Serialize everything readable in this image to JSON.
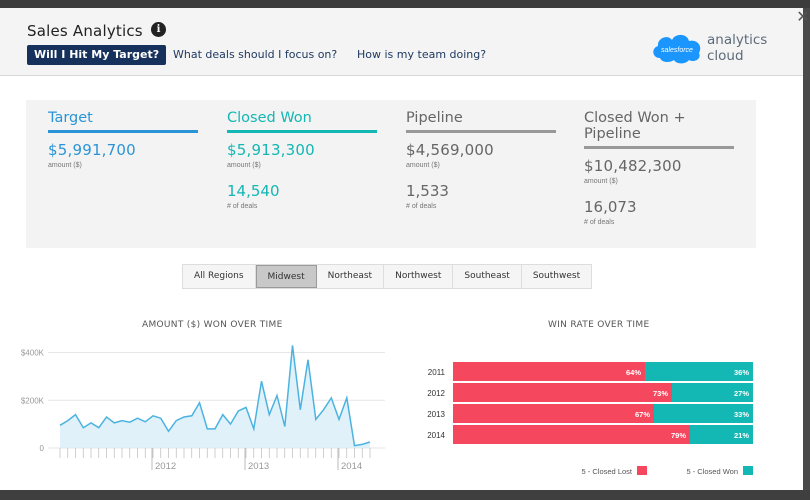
{
  "header": {
    "title": "Sales Analytics",
    "info_icon": "info-icon",
    "tabs": [
      {
        "label": "Will I Hit My Target?",
        "active": true
      },
      {
        "label": "What deals should I focus on?",
        "active": false
      },
      {
        "label": "How is my team doing?",
        "active": false
      }
    ],
    "logo": {
      "cloud_text": "salesforce",
      "product": "analytics cloud"
    },
    "close_icon": "close-icon"
  },
  "kpis": [
    {
      "title": "Target",
      "value": "$5,991,700",
      "unit": "amount ($)",
      "count": "",
      "count_unit": ""
    },
    {
      "title": "Closed Won",
      "value": "$5,913,300",
      "unit": "amount ($)",
      "count": "14,540",
      "count_unit": "# of deals"
    },
    {
      "title": "Pipeline",
      "value": "$4,569,000",
      "unit": "amount ($)",
      "count": "1,533",
      "count_unit": "# of deals"
    },
    {
      "title": "Closed Won + Pipeline",
      "value": "$10,482,300",
      "unit": "amount ($)",
      "count": "16,073",
      "count_unit": "# of deals"
    }
  ],
  "filters": [
    {
      "label": "All Regions",
      "active": false
    },
    {
      "label": "Midwest",
      "active": true
    },
    {
      "label": "Northeast",
      "active": false
    },
    {
      "label": "Northwest",
      "active": false
    },
    {
      "label": "Southeast",
      "active": false
    },
    {
      "label": "Southwest",
      "active": false
    }
  ],
  "colors": {
    "target_blue": "#2a94d6",
    "closed_won_teal": "#13b7b3",
    "lost_red": "#f5475d",
    "nav_active": "#16325c"
  },
  "chart_data": [
    {
      "type": "area",
      "title": "AMOUNT ($) WON OVER TIME",
      "ytick_labels": [
        "$400K",
        "$200K",
        "0"
      ],
      "ytick_values": [
        400000,
        200000,
        0
      ],
      "ylim": [
        0,
        440000
      ],
      "xtick_labels": [
        "2012",
        "2013",
        "2014"
      ],
      "grid": true,
      "series": [
        {
          "values": [
            95000,
            115000,
            140000,
            85000,
            105000,
            85000,
            130000,
            105000,
            115000,
            108000,
            125000,
            110000,
            135000,
            125000,
            70000,
            115000,
            130000,
            135000,
            190000,
            80000,
            80000,
            140000,
            100000,
            155000,
            170000,
            80000,
            280000,
            140000,
            220000,
            90000,
            430000,
            160000,
            370000,
            120000,
            160000,
            210000,
            120000,
            210000,
            10000,
            15000,
            25000
          ]
        }
      ]
    },
    {
      "type": "bar",
      "title": "WIN RATE OVER TIME",
      "stacked": true,
      "horizontal": true,
      "categories": [
        "2011",
        "2012",
        "2013",
        "2014"
      ],
      "series": [
        {
          "name": "5 - Closed Lost",
          "values": [
            64,
            73,
            67,
            79
          ],
          "labels": [
            "64%",
            "73%",
            "67%",
            "79%"
          ],
          "color": "#f5475d"
        },
        {
          "name": "5 - Closed Won",
          "values": [
            36,
            27,
            33,
            21
          ],
          "labels": [
            "36%",
            "27%",
            "33%",
            "21%"
          ],
          "color": "#13b7b3"
        }
      ],
      "legend": "bottom-right"
    }
  ]
}
